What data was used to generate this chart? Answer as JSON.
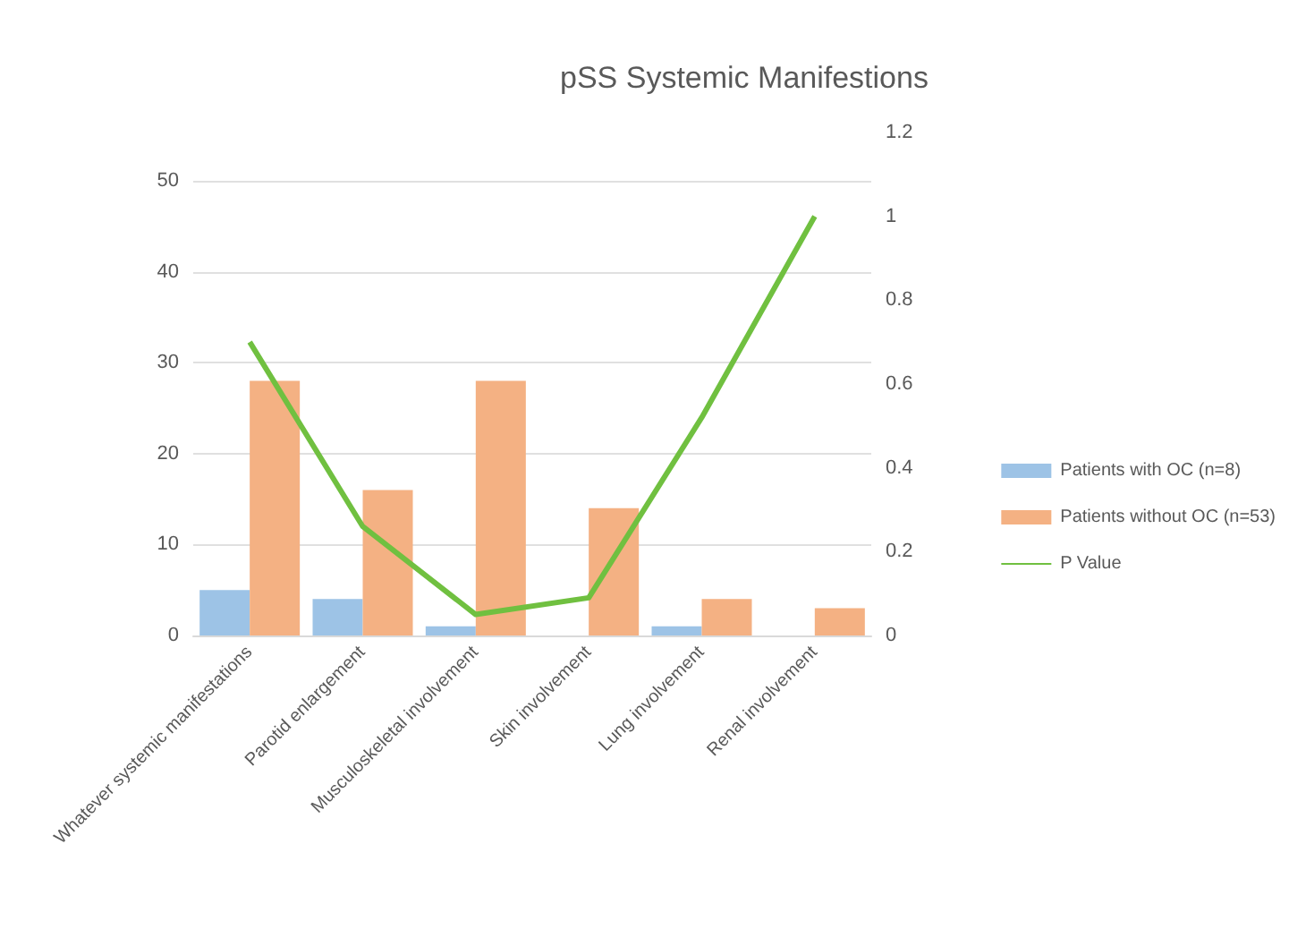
{
  "chart_data": {
    "type": "bar",
    "title": "pSS Systemic Manifestions",
    "categories": [
      "Whatever systemic manifestations",
      "Parotid enlargement",
      "Musculoskeletal involvement",
      "Skin involvement",
      "Lung involvement",
      "Renal involvement"
    ],
    "series": [
      {
        "name": "Patients with OC (n=8)",
        "color": "#9dc3e6",
        "values": [
          5,
          4,
          1,
          0,
          1,
          0
        ]
      },
      {
        "name": "Patients without OC (n=53)",
        "color": "#f4b183",
        "values": [
          28,
          16,
          28,
          14,
          4,
          3
        ]
      },
      {
        "name": "P Value",
        "type": "line",
        "axis": "y2",
        "color": "#70c040",
        "values": [
          0.7,
          0.26,
          0.05,
          0.09,
          0.52,
          1.0
        ]
      }
    ],
    "ylim": [
      0,
      50
    ],
    "yticks": [
      0,
      10,
      20,
      30,
      40,
      50
    ],
    "y2lim": [
      0,
      1.2
    ],
    "y2ticks": [
      0,
      0.2,
      0.4,
      0.6,
      0.8,
      1,
      1.2
    ],
    "grid": "y",
    "legend": "right",
    "marker": "none"
  }
}
